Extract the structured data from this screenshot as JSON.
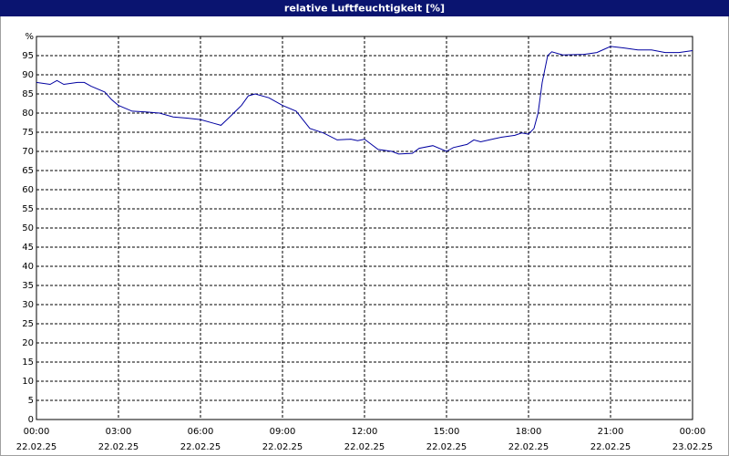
{
  "chart_data": {
    "type": "line",
    "title": "relative Luftfeuchtigkeit [%]",
    "title_bar_color": "#0a1470",
    "xlim": [
      0,
      24
    ],
    "xticks": [
      {
        "value": 0,
        "label": "00:00"
      },
      {
        "value": 3,
        "label": "03:00"
      },
      {
        "value": 6,
        "label": "06:00"
      },
      {
        "value": 9,
        "label": "09:00"
      },
      {
        "value": 12,
        "label": "12:00"
      },
      {
        "value": 15,
        "label": "15:00"
      },
      {
        "value": 18,
        "label": "18:00"
      },
      {
        "value": 21,
        "label": "21:00"
      },
      {
        "value": 24,
        "label": "00:00"
      }
    ],
    "xtick_dates": [
      "22.02.25",
      "22.02.25",
      "22.02.25",
      "22.02.25",
      "22.02.25",
      "22.02.25",
      "22.02.25",
      "22.02.25",
      "23.02.25"
    ],
    "ylim": [
      0,
      100
    ],
    "yticks": [
      0,
      5,
      10,
      15,
      20,
      25,
      30,
      35,
      40,
      45,
      50,
      55,
      60,
      65,
      70,
      75,
      80,
      85,
      90,
      95,
      {
        "value": 100,
        "label": "%"
      }
    ],
    "grid": true,
    "series": [
      {
        "color": "#0000a0",
        "x": [
          0,
          0.5,
          0.75,
          1.0,
          1.5,
          1.75,
          2.0,
          2.5,
          2.75,
          3.0,
          3.5,
          4.0,
          4.5,
          5.0,
          5.5,
          6.0,
          6.5,
          6.75,
          7.0,
          7.5,
          7.75,
          8.0,
          8.5,
          9.0,
          9.5,
          10.0,
          10.5,
          11.0,
          11.5,
          11.75,
          12.0,
          12.5,
          13.0,
          13.25,
          13.75,
          14.0,
          14.5,
          15.0,
          15.25,
          15.75,
          16.0,
          16.25,
          16.75,
          17.0,
          17.5,
          17.75,
          18.0,
          18.2,
          18.35,
          18.5,
          18.7,
          18.85,
          19.25,
          20.0,
          20.5,
          21.0,
          21.5,
          22.0,
          22.5,
          23.0,
          23.5,
          24.0
        ],
        "values": [
          88,
          87.5,
          88.5,
          87.5,
          88,
          88,
          87,
          85.5,
          83.5,
          82,
          80.5,
          80.3,
          80,
          79,
          78.7,
          78.3,
          77.3,
          76.8,
          78.5,
          82,
          84.5,
          85,
          84,
          82,
          80.5,
          76,
          74.8,
          73,
          73.2,
          72.8,
          73.2,
          70.5,
          70,
          69.3,
          69.5,
          70.8,
          71.5,
          70,
          71,
          71.8,
          73,
          72.5,
          73.3,
          73.7,
          74.2,
          74.8,
          74.5,
          76,
          80,
          88,
          95,
          96,
          95.2,
          95.3,
          95.8,
          97.4,
          97,
          96.5,
          96.5,
          95.8,
          95.8,
          96.3
        ]
      }
    ]
  }
}
